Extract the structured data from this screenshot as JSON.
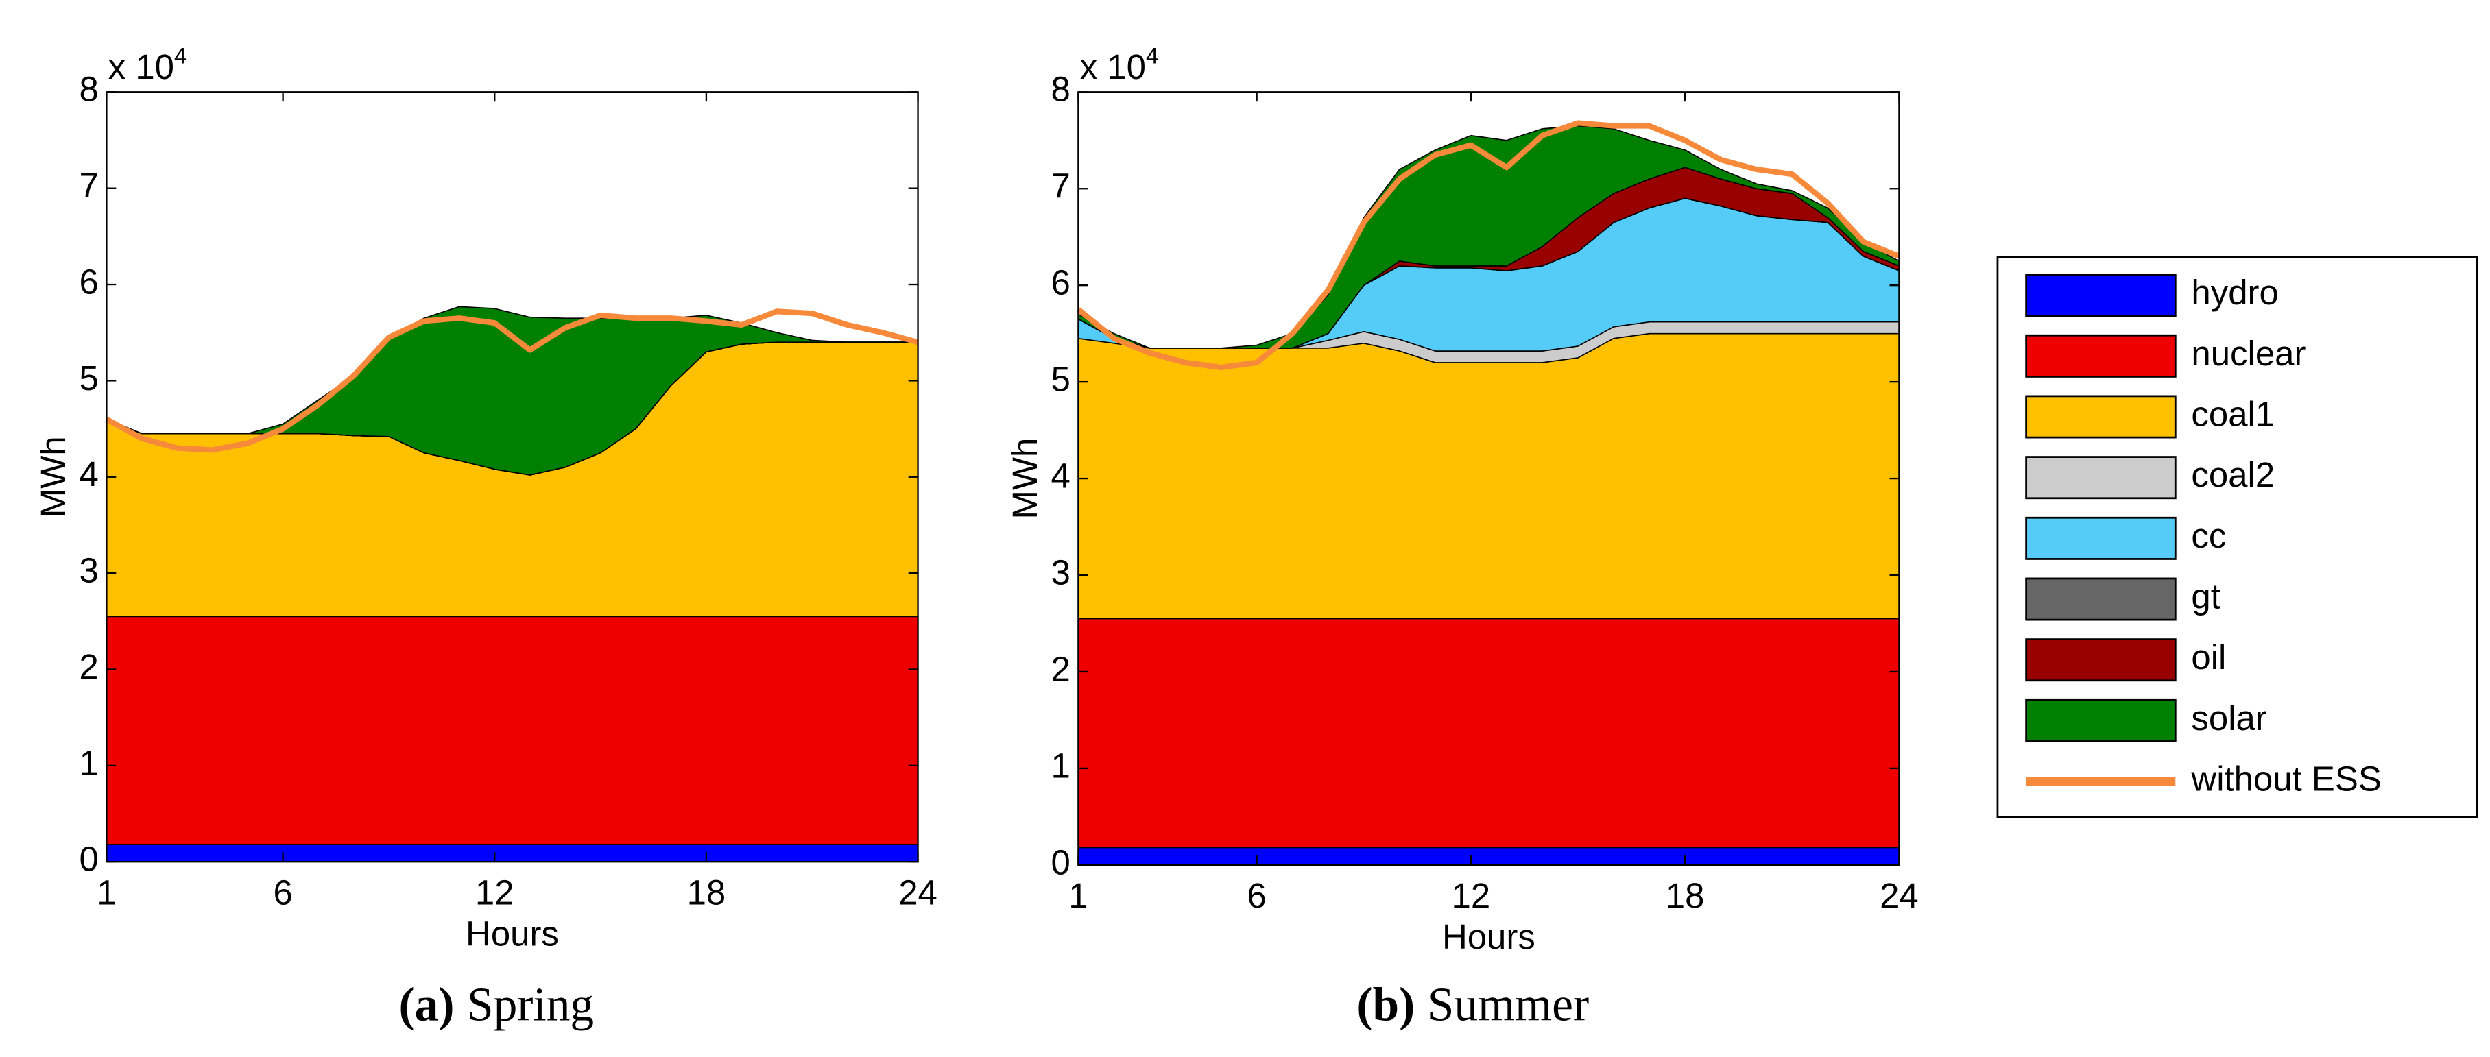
{
  "chart_data": [
    {
      "type": "stacked_area",
      "caption_label": "(a)",
      "caption": "Spring",
      "xlabel": "Hours",
      "ylabel": "MWh",
      "y_multiplier": "x 10",
      "y_exponent": "4",
      "x": [
        1,
        2,
        3,
        4,
        5,
        6,
        7,
        8,
        9,
        10,
        11,
        12,
        13,
        14,
        15,
        16,
        17,
        18,
        19,
        20,
        21,
        22,
        23,
        24
      ],
      "xlim": [
        1,
        24
      ],
      "xticks": [
        1,
        6,
        12,
        18,
        24
      ],
      "ylim": [
        0,
        8
      ],
      "yticks": [
        0,
        1,
        2,
        3,
        4,
        5,
        6,
        7,
        8
      ],
      "grid": false,
      "series": [
        {
          "name": "hydro",
          "color": "#0000ff",
          "values": [
            0.18,
            0.18,
            0.18,
            0.18,
            0.18,
            0.18,
            0.18,
            0.18,
            0.18,
            0.18,
            0.18,
            0.18,
            0.18,
            0.18,
            0.18,
            0.18,
            0.18,
            0.18,
            0.18,
            0.18,
            0.18,
            0.18,
            0.18,
            0.18
          ]
        },
        {
          "name": "nuclear",
          "color": "#ee0000",
          "values": [
            2.37,
            2.37,
            2.37,
            2.37,
            2.37,
            2.37,
            2.37,
            2.37,
            2.37,
            2.37,
            2.37,
            2.37,
            2.37,
            2.37,
            2.37,
            2.37,
            2.37,
            2.37,
            2.37,
            2.37,
            2.37,
            2.37,
            2.37,
            2.37
          ]
        },
        {
          "name": "coal1",
          "color": "#ffc000",
          "values": [
            2.05,
            1.9,
            1.9,
            1.9,
            1.9,
            1.9,
            1.9,
            1.88,
            1.87,
            1.7,
            1.62,
            1.53,
            1.47,
            1.55,
            1.7,
            1.95,
            2.4,
            2.75,
            2.83,
            2.85,
            2.85,
            2.85,
            2.85,
            2.85
          ]
        },
        {
          "name": "coal2",
          "color": "#cccccc",
          "values": [
            0,
            0,
            0,
            0,
            0,
            0,
            0,
            0,
            0,
            0,
            0,
            0,
            0,
            0,
            0,
            0,
            0,
            0,
            0,
            0,
            0,
            0,
            0,
            0
          ]
        },
        {
          "name": "cc",
          "color": "#55ccf8",
          "values": [
            0,
            0,
            0,
            0,
            0,
            0,
            0,
            0,
            0,
            0,
            0,
            0,
            0,
            0,
            0,
            0,
            0,
            0,
            0,
            0,
            0,
            0,
            0,
            0
          ]
        },
        {
          "name": "gt",
          "color": "#666666",
          "values": [
            0,
            0,
            0,
            0,
            0,
            0,
            0,
            0,
            0,
            0,
            0,
            0,
            0,
            0,
            0,
            0,
            0,
            0,
            0,
            0,
            0,
            0,
            0,
            0
          ]
        },
        {
          "name": "oil",
          "color": "#990000",
          "values": [
            0,
            0,
            0,
            0,
            0,
            0,
            0,
            0,
            0,
            0,
            0,
            0,
            0,
            0,
            0,
            0,
            0,
            0,
            0,
            0,
            0,
            0,
            0,
            0
          ]
        },
        {
          "name": "solar",
          "color": "#007f00",
          "values": [
            0,
            0,
            0,
            0,
            0,
            0.1,
            0.35,
            0.62,
            1.03,
            1.4,
            1.6,
            1.67,
            1.64,
            1.55,
            1.4,
            1.15,
            0.7,
            0.38,
            0.22,
            0.1,
            0.02,
            0,
            0,
            0
          ]
        }
      ],
      "line": {
        "name": "without ESS",
        "color": "#f7893b",
        "values": [
          4.6,
          4.4,
          4.3,
          4.28,
          4.35,
          4.5,
          4.75,
          5.05,
          5.45,
          5.62,
          5.65,
          5.6,
          5.32,
          5.55,
          5.68,
          5.65,
          5.65,
          5.62,
          5.58,
          5.72,
          5.7,
          5.58,
          5.5,
          5.4
        ]
      }
    },
    {
      "type": "stacked_area",
      "caption_label": "(b)",
      "caption": "Summer",
      "xlabel": "Hours",
      "ylabel": "MWh",
      "y_multiplier": "x 10",
      "y_exponent": "4",
      "x": [
        1,
        2,
        3,
        4,
        5,
        6,
        7,
        8,
        9,
        10,
        11,
        12,
        13,
        14,
        15,
        16,
        17,
        18,
        19,
        20,
        21,
        22,
        23,
        24
      ],
      "xlim": [
        1,
        24
      ],
      "xticks": [
        1,
        6,
        12,
        18,
        24
      ],
      "ylim": [
        0,
        8
      ],
      "yticks": [
        0,
        1,
        2,
        3,
        4,
        5,
        6,
        7,
        8
      ],
      "grid": false,
      "legend": "outside right",
      "series": [
        {
          "name": "hydro",
          "color": "#0000ff",
          "values": [
            0.18,
            0.18,
            0.18,
            0.18,
            0.18,
            0.18,
            0.18,
            0.18,
            0.18,
            0.18,
            0.18,
            0.18,
            0.18,
            0.18,
            0.18,
            0.18,
            0.18,
            0.18,
            0.18,
            0.18,
            0.18,
            0.18,
            0.18,
            0.18
          ]
        },
        {
          "name": "nuclear",
          "color": "#ee0000",
          "values": [
            2.37,
            2.37,
            2.37,
            2.37,
            2.37,
            2.37,
            2.37,
            2.37,
            2.37,
            2.37,
            2.37,
            2.37,
            2.37,
            2.37,
            2.37,
            2.37,
            2.37,
            2.37,
            2.37,
            2.37,
            2.37,
            2.37,
            2.37,
            2.37
          ]
        },
        {
          "name": "coal1",
          "color": "#ffc000",
          "values": [
            2.9,
            2.85,
            2.8,
            2.8,
            2.8,
            2.8,
            2.8,
            2.8,
            2.85,
            2.77,
            2.65,
            2.65,
            2.65,
            2.65,
            2.7,
            2.9,
            2.95,
            2.95,
            2.95,
            2.95,
            2.95,
            2.95,
            2.95,
            2.95
          ]
        },
        {
          "name": "coal2",
          "color": "#cccccc",
          "values": [
            0,
            0,
            0,
            0,
            0,
            0,
            0,
            0.08,
            0.12,
            0.12,
            0.12,
            0.12,
            0.12,
            0.12,
            0.12,
            0.12,
            0.12,
            0.12,
            0.12,
            0.12,
            0.12,
            0.12,
            0.12,
            0.12
          ]
        },
        {
          "name": "cc",
          "color": "#55ccf8",
          "values": [
            0.2,
            0.05,
            0,
            0,
            0,
            0,
            0,
            0.07,
            0.48,
            0.76,
            0.86,
            0.86,
            0.83,
            0.88,
            0.98,
            1.08,
            1.18,
            1.28,
            1.2,
            1.1,
            1.06,
            1.03,
            0.68,
            0.53
          ]
        },
        {
          "name": "gt",
          "color": "#666666",
          "values": [
            0,
            0,
            0,
            0,
            0,
            0,
            0,
            0,
            0,
            0,
            0,
            0,
            0,
            0,
            0,
            0,
            0,
            0,
            0,
            0,
            0,
            0,
            0,
            0
          ]
        },
        {
          "name": "oil",
          "color": "#990000",
          "values": [
            0,
            0,
            0,
            0,
            0,
            0,
            0,
            0,
            0,
            0.05,
            0.02,
            0.02,
            0.05,
            0.2,
            0.35,
            0.3,
            0.3,
            0.32,
            0.28,
            0.28,
            0.27,
            0.05,
            0.05,
            0.05
          ]
        },
        {
          "name": "solar",
          "color": "#007f00",
          "values": [
            0.05,
            0.05,
            0,
            0,
            0,
            0.03,
            0.15,
            0.4,
            0.7,
            0.95,
            1.2,
            1.35,
            1.3,
            1.22,
            0.95,
            0.67,
            0.4,
            0.18,
            0.1,
            0.05,
            0.03,
            0.1,
            0.1,
            0.05
          ]
        }
      ],
      "line": {
        "name": "without ESS",
        "color": "#f7893b",
        "values": [
          5.75,
          5.45,
          5.3,
          5.2,
          5.15,
          5.2,
          5.5,
          5.95,
          6.65,
          7.1,
          7.35,
          7.45,
          7.22,
          7.55,
          7.68,
          7.65,
          7.65,
          7.5,
          7.3,
          7.2,
          7.15,
          6.85,
          6.45,
          6.3
        ]
      }
    }
  ]
}
